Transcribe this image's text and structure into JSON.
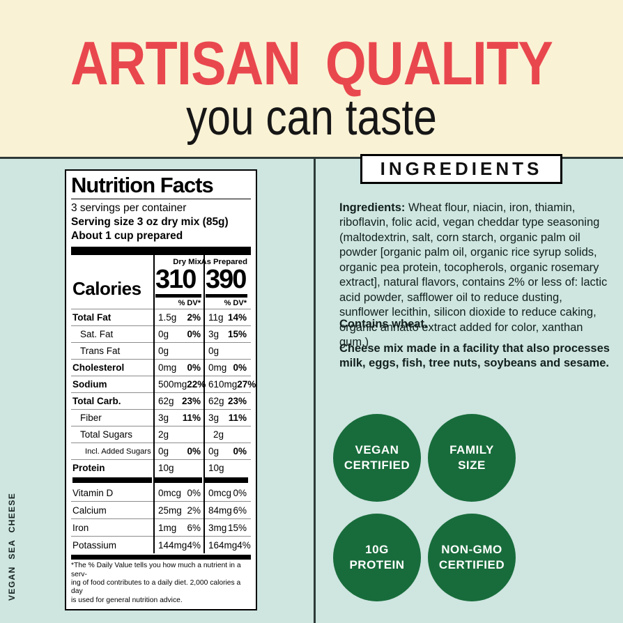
{
  "header": {
    "title": "ARTISAN QUALITY",
    "subtitle": "you can taste"
  },
  "side_label": "VEGAN SEA CHEESE",
  "colors": {
    "cream": "#faf2d5",
    "mint": "#cee5e0",
    "accent_red": "#e9474e",
    "badge_green": "#186c3b",
    "rule_dark": "#2e3a37"
  },
  "nutrition": {
    "title": "Nutrition Facts",
    "servings_per_container": "3 servings per container",
    "serving_size": "Serving size 3 oz dry mix (85g)",
    "serving_note": "About 1 cup prepared",
    "col_dry": "Dry Mix",
    "col_prepared": "As Prepared",
    "calories_label": "Calories",
    "calories_dry": "310",
    "calories_prepared": "390",
    "dv_label": "% DV*",
    "rows": [
      {
        "name": "Total Fat",
        "dry_amt": "1.5g",
        "dry_dv": "2%",
        "prep_amt": "11g",
        "prep_dv": "14%"
      },
      {
        "name": "Sat. Fat",
        "dry_amt": "0g",
        "dry_dv": "0%",
        "prep_amt": "3g",
        "prep_dv": "15%"
      },
      {
        "name": "Trans Fat",
        "dry_amt": "0g",
        "dry_dv": "",
        "prep_amt": "0g",
        "prep_dv": ""
      },
      {
        "name": "Cholesterol",
        "dry_amt": "0mg",
        "dry_dv": "0%",
        "prep_amt": "0mg",
        "prep_dv": "0%"
      },
      {
        "name": "Sodium",
        "dry_amt": "500mg",
        "dry_dv": "22%",
        "prep_amt": "610mg",
        "prep_dv": "27%"
      },
      {
        "name": "Total Carb.",
        "dry_amt": "62g",
        "dry_dv": "23%",
        "prep_amt": "62g",
        "prep_dv": "23%"
      },
      {
        "name": "Fiber",
        "dry_amt": "3g",
        "dry_dv": "11%",
        "prep_amt": "3g",
        "prep_dv": "11%"
      },
      {
        "name": "Total Sugars",
        "dry_amt": "2g",
        "dry_dv": "",
        "prep_amt": "2g",
        "prep_dv": ""
      },
      {
        "name": "Incl. Added Sugars",
        "dry_amt": "0g",
        "dry_dv": "0%",
        "prep_amt": "0g",
        "prep_dv": "0%"
      },
      {
        "name": "Protein",
        "dry_amt": "10g",
        "dry_dv": "",
        "prep_amt": "10g",
        "prep_dv": ""
      }
    ],
    "vitamin_rows": [
      {
        "name": "Vitamin D",
        "dry_amt": "0mcg",
        "dry_dv": "0%",
        "prep_amt": "0mcg",
        "prep_dv": "0%"
      },
      {
        "name": "Calcium",
        "dry_amt": "25mg",
        "dry_dv": "2%",
        "prep_amt": "84mg",
        "prep_dv": "6%"
      },
      {
        "name": "Iron",
        "dry_amt": "1mg",
        "dry_dv": "6%",
        "prep_amt": "3mg",
        "prep_dv": "15%"
      },
      {
        "name": "Potassium",
        "dry_amt": "144mg",
        "dry_dv": "4%",
        "prep_amt": "164mg",
        "prep_dv": "4%"
      }
    ],
    "footnote": "*The % Daily Value tells you how much a nutrient in a serv-\ning of food contributes to a daily diet. 2,000 calories a day\nis used for general nutrition advice."
  },
  "ingredients_panel": {
    "heading": "INGREDIENTS",
    "lead": "Ingredients:",
    "body": " Wheat flour, niacin, iron, thiamin, riboflavin, folic acid, vegan cheddar type seasoning (maltodextrin, salt, corn starch, organic palm oil powder [organic palm oil, organic rice syrup solids, organic pea protein, tocopherols, organic rosemary extract], natural flavors, contains 2% or less of: lactic acid powder, safflower oil to reduce dusting, sunflower lecithin, silicon dioxide to reduce caking, organic annatto extract added for color, xanthan gum.)",
    "contains": "Contains wheat.",
    "facility": "Cheese mix made in a facility that also processes milk, eggs, fish, tree nuts, soybeans and sesame.",
    "badges": [
      "VEGAN\nCERTIFIED",
      "FAMILY\nSIZE",
      "10G\nPROTEIN",
      "NON-GMO\nCERTIFIED"
    ]
  }
}
